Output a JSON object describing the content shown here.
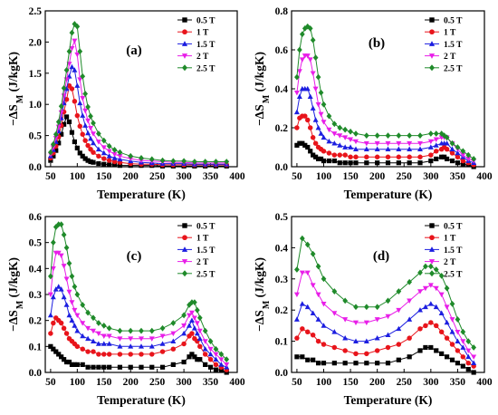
{
  "colors": {
    "0.5 T": "#000000",
    "1 T": "#e8141b",
    "1.5 T": "#1c1ee0",
    "2 T": "#e81ee8",
    "2.5 T": "#1f8a2a"
  },
  "markers": {
    "0.5 T": "square",
    "1 T": "circle",
    "1.5 T": "triangle-up",
    "2 T": "triangle-down",
    "2.5 T": "diamond"
  },
  "chart_data": [
    {
      "type": "line",
      "panel_label": "(a)",
      "xlabel": "Temperature (K)",
      "ylabel": "−ΔS_M (J/kgK)",
      "xlim": [
        40,
        400
      ],
      "ylim": [
        0,
        2.5
      ],
      "xticks": [
        50,
        100,
        150,
        200,
        250,
        300,
        350,
        400
      ],
      "yticks": [
        0.0,
        0.5,
        1.0,
        1.5,
        2.0,
        2.5
      ],
      "ytick_labels": [
        "0.0",
        "0.5",
        "1.0",
        "1.5",
        "2.0",
        "2.5"
      ],
      "legend_position": "top-right",
      "x": [
        50,
        55,
        60,
        65,
        70,
        75,
        80,
        85,
        90,
        95,
        100,
        105,
        110,
        115,
        120,
        125,
        130,
        140,
        150,
        160,
        170,
        180,
        200,
        220,
        240,
        260,
        280,
        300,
        320,
        340,
        360,
        380
      ],
      "series": [
        {
          "name": "0.5 T",
          "values": [
            0.1,
            0.17,
            0.26,
            0.38,
            0.52,
            0.68,
            0.8,
            0.72,
            0.55,
            0.4,
            0.3,
            0.22,
            0.17,
            0.13,
            0.1,
            0.08,
            0.07,
            0.05,
            0.04,
            0.03,
            0.03,
            0.02,
            0.02,
            0.02,
            0.02,
            0.01,
            0.01,
            0.01,
            0.01,
            0.01,
            0.01,
            0.01
          ]
        },
        {
          "name": "1 T",
          "values": [
            0.14,
            0.22,
            0.33,
            0.48,
            0.66,
            0.88,
            1.08,
            1.3,
            1.25,
            1.05,
            0.82,
            0.65,
            0.52,
            0.42,
            0.34,
            0.28,
            0.23,
            0.17,
            0.13,
            0.1,
            0.08,
            0.07,
            0.05,
            0.04,
            0.04,
            0.03,
            0.03,
            0.03,
            0.03,
            0.03,
            0.03,
            0.03
          ]
        },
        {
          "name": "1.5 T",
          "values": [
            0.17,
            0.27,
            0.4,
            0.57,
            0.78,
            1.02,
            1.25,
            1.45,
            1.6,
            1.55,
            1.3,
            1.02,
            0.82,
            0.66,
            0.54,
            0.45,
            0.38,
            0.28,
            0.22,
            0.17,
            0.14,
            0.12,
            0.09,
            0.07,
            0.06,
            0.05,
            0.05,
            0.05,
            0.04,
            0.04,
            0.04,
            0.04
          ]
        },
        {
          "name": "2 T",
          "values": [
            0.2,
            0.31,
            0.46,
            0.64,
            0.87,
            1.14,
            1.4,
            1.65,
            1.9,
            2.02,
            1.8,
            1.4,
            1.1,
            0.9,
            0.74,
            0.62,
            0.53,
            0.4,
            0.31,
            0.25,
            0.2,
            0.17,
            0.13,
            0.1,
            0.09,
            0.08,
            0.07,
            0.07,
            0.06,
            0.06,
            0.06,
            0.06
          ]
        },
        {
          "name": "2.5 T",
          "values": [
            0.23,
            0.36,
            0.52,
            0.72,
            0.97,
            1.26,
            1.55,
            1.85,
            2.15,
            2.29,
            2.25,
            1.85,
            1.45,
            1.17,
            0.96,
            0.81,
            0.7,
            0.53,
            0.42,
            0.33,
            0.27,
            0.23,
            0.17,
            0.14,
            0.12,
            0.1,
            0.09,
            0.09,
            0.08,
            0.08,
            0.08,
            0.08
          ]
        }
      ]
    },
    {
      "type": "line",
      "panel_label": "(b)",
      "xlabel": "Temperature (K)",
      "ylabel": "−ΔS_M (J/kgK)",
      "xlim": [
        40,
        400
      ],
      "ylim": [
        0,
        0.8
      ],
      "xticks": [
        50,
        100,
        150,
        200,
        250,
        300,
        350,
        400
      ],
      "yticks": [
        0.0,
        0.2,
        0.4,
        0.6,
        0.8
      ],
      "ytick_labels": [
        "0.0",
        "0.2",
        "0.4",
        "0.6",
        "0.8"
      ],
      "legend_position": "top-right",
      "x": [
        50,
        55,
        60,
        65,
        70,
        75,
        80,
        85,
        90,
        95,
        100,
        110,
        120,
        130,
        140,
        150,
        160,
        180,
        200,
        220,
        240,
        260,
        280,
        300,
        310,
        320,
        325,
        330,
        340,
        350,
        360,
        370,
        380
      ],
      "series": [
        {
          "name": "0.5 T",
          "values": [
            0.11,
            0.12,
            0.12,
            0.11,
            0.1,
            0.08,
            0.06,
            0.05,
            0.04,
            0.04,
            0.03,
            0.03,
            0.03,
            0.02,
            0.02,
            0.02,
            0.02,
            0.02,
            0.02,
            0.02,
            0.02,
            0.02,
            0.02,
            0.03,
            0.04,
            0.05,
            0.05,
            0.04,
            0.03,
            0.02,
            0.01,
            0.01,
            0.0
          ]
        },
        {
          "name": "1 T",
          "values": [
            0.2,
            0.25,
            0.26,
            0.26,
            0.24,
            0.2,
            0.15,
            0.12,
            0.1,
            0.09,
            0.08,
            0.07,
            0.06,
            0.06,
            0.06,
            0.05,
            0.05,
            0.05,
            0.05,
            0.05,
            0.05,
            0.05,
            0.05,
            0.06,
            0.08,
            0.09,
            0.1,
            0.09,
            0.07,
            0.05,
            0.03,
            0.02,
            0.01
          ]
        },
        {
          "name": "1.5 T",
          "values": [
            0.28,
            0.36,
            0.4,
            0.4,
            0.4,
            0.36,
            0.3,
            0.24,
            0.2,
            0.17,
            0.15,
            0.13,
            0.12,
            0.11,
            0.1,
            0.1,
            0.09,
            0.09,
            0.09,
            0.09,
            0.09,
            0.09,
            0.09,
            0.1,
            0.11,
            0.12,
            0.12,
            0.12,
            0.09,
            0.07,
            0.05,
            0.03,
            0.02
          ]
        },
        {
          "name": "2 T",
          "values": [
            0.38,
            0.49,
            0.55,
            0.57,
            0.57,
            0.55,
            0.48,
            0.4,
            0.32,
            0.27,
            0.23,
            0.19,
            0.17,
            0.16,
            0.15,
            0.14,
            0.13,
            0.12,
            0.12,
            0.12,
            0.12,
            0.12,
            0.12,
            0.13,
            0.14,
            0.15,
            0.15,
            0.15,
            0.12,
            0.09,
            0.06,
            0.04,
            0.03
          ]
        },
        {
          "name": "2.5 T",
          "values": [
            0.46,
            0.6,
            0.68,
            0.71,
            0.72,
            0.71,
            0.65,
            0.56,
            0.46,
            0.38,
            0.32,
            0.26,
            0.22,
            0.2,
            0.19,
            0.18,
            0.17,
            0.16,
            0.16,
            0.16,
            0.16,
            0.16,
            0.16,
            0.17,
            0.17,
            0.17,
            0.16,
            0.15,
            0.12,
            0.1,
            0.08,
            0.06,
            0.04
          ]
        }
      ]
    },
    {
      "type": "line",
      "panel_label": "(c)",
      "xlabel": "Temperature (K)",
      "ylabel": "−ΔS_M (J/kgK)",
      "xlim": [
        40,
        400
      ],
      "ylim": [
        0,
        0.6
      ],
      "xticks": [
        50,
        100,
        150,
        200,
        250,
        300,
        350,
        400
      ],
      "yticks": [
        0.0,
        0.1,
        0.2,
        0.3,
        0.4,
        0.5,
        0.6
      ],
      "ytick_labels": [
        "0.0",
        "0.1",
        "0.2",
        "0.3",
        "0.4",
        "0.5",
        "0.6"
      ],
      "legend_position": "top-right",
      "x": [
        50,
        55,
        60,
        65,
        70,
        75,
        80,
        85,
        90,
        95,
        100,
        110,
        120,
        130,
        140,
        150,
        160,
        180,
        200,
        220,
        240,
        260,
        280,
        300,
        310,
        315,
        320,
        325,
        330,
        340,
        350,
        360,
        370,
        380
      ],
      "series": [
        {
          "name": "0.5 T",
          "values": [
            0.1,
            0.09,
            0.08,
            0.07,
            0.06,
            0.05,
            0.04,
            0.04,
            0.03,
            0.03,
            0.03,
            0.03,
            0.02,
            0.02,
            0.02,
            0.02,
            0.02,
            0.02,
            0.02,
            0.02,
            0.02,
            0.02,
            0.03,
            0.04,
            0.06,
            0.07,
            0.06,
            0.05,
            0.05,
            0.03,
            0.02,
            0.01,
            0.01,
            0.0
          ]
        },
        {
          "name": "1 T",
          "values": [
            0.15,
            0.19,
            0.21,
            0.2,
            0.19,
            0.17,
            0.15,
            0.13,
            0.12,
            0.11,
            0.1,
            0.09,
            0.08,
            0.08,
            0.07,
            0.07,
            0.07,
            0.07,
            0.07,
            0.07,
            0.07,
            0.08,
            0.09,
            0.11,
            0.14,
            0.15,
            0.13,
            0.12,
            0.1,
            0.07,
            0.05,
            0.03,
            0.02,
            0.01
          ]
        },
        {
          "name": "1.5 T",
          "values": [
            0.22,
            0.29,
            0.32,
            0.33,
            0.32,
            0.29,
            0.26,
            0.22,
            0.2,
            0.18,
            0.16,
            0.14,
            0.13,
            0.12,
            0.11,
            0.11,
            0.11,
            0.1,
            0.1,
            0.1,
            0.1,
            0.11,
            0.12,
            0.15,
            0.18,
            0.2,
            0.17,
            0.15,
            0.13,
            0.09,
            0.07,
            0.05,
            0.03,
            0.02
          ]
        },
        {
          "name": "2 T",
          "values": [
            0.3,
            0.4,
            0.46,
            0.46,
            0.45,
            0.41,
            0.36,
            0.31,
            0.27,
            0.24,
            0.22,
            0.19,
            0.17,
            0.16,
            0.15,
            0.14,
            0.14,
            0.13,
            0.13,
            0.13,
            0.13,
            0.14,
            0.15,
            0.18,
            0.22,
            0.23,
            0.21,
            0.19,
            0.16,
            0.12,
            0.09,
            0.07,
            0.05,
            0.03
          ]
        },
        {
          "name": "2.5 T",
          "values": [
            0.37,
            0.5,
            0.56,
            0.57,
            0.57,
            0.53,
            0.48,
            0.42,
            0.37,
            0.33,
            0.3,
            0.26,
            0.23,
            0.21,
            0.19,
            0.18,
            0.17,
            0.16,
            0.16,
            0.16,
            0.16,
            0.17,
            0.19,
            0.22,
            0.26,
            0.27,
            0.27,
            0.24,
            0.21,
            0.16,
            0.12,
            0.09,
            0.07,
            0.05
          ]
        }
      ]
    },
    {
      "type": "line",
      "panel_label": "(d)",
      "xlabel": "Temperature (K)",
      "ylabel": "−ΔS_M (J/kgK)",
      "xlim": [
        40,
        400
      ],
      "ylim": [
        0,
        0.5
      ],
      "xticks": [
        50,
        100,
        150,
        200,
        250,
        300,
        350,
        400
      ],
      "yticks": [
        0.0,
        0.1,
        0.2,
        0.3,
        0.4,
        0.5
      ],
      "ytick_labels": [
        "0.0",
        "0.1",
        "0.2",
        "0.3",
        "0.4",
        "0.5"
      ],
      "legend_position": "top-right",
      "x": [
        50,
        60,
        70,
        80,
        90,
        100,
        120,
        140,
        160,
        180,
        200,
        220,
        240,
        260,
        280,
        290,
        300,
        310,
        320,
        330,
        340,
        350,
        360,
        370,
        380
      ],
      "series": [
        {
          "name": "0.5 T",
          "values": [
            0.05,
            0.05,
            0.04,
            0.04,
            0.03,
            0.03,
            0.03,
            0.03,
            0.03,
            0.03,
            0.03,
            0.03,
            0.04,
            0.05,
            0.07,
            0.08,
            0.08,
            0.07,
            0.06,
            0.05,
            0.04,
            0.03,
            0.02,
            0.01,
            0.0
          ]
        },
        {
          "name": "1 T",
          "values": [
            0.11,
            0.14,
            0.13,
            0.12,
            0.1,
            0.09,
            0.08,
            0.07,
            0.06,
            0.06,
            0.07,
            0.08,
            0.09,
            0.11,
            0.14,
            0.15,
            0.16,
            0.15,
            0.13,
            0.11,
            0.09,
            0.07,
            0.05,
            0.03,
            0.02
          ]
        },
        {
          "name": "1.5 T",
          "values": [
            0.17,
            0.22,
            0.21,
            0.19,
            0.17,
            0.15,
            0.13,
            0.11,
            0.1,
            0.1,
            0.11,
            0.12,
            0.14,
            0.17,
            0.2,
            0.21,
            0.22,
            0.21,
            0.19,
            0.16,
            0.13,
            0.1,
            0.08,
            0.05,
            0.03
          ]
        },
        {
          "name": "2 T",
          "values": [
            0.25,
            0.32,
            0.32,
            0.28,
            0.25,
            0.22,
            0.19,
            0.17,
            0.16,
            0.16,
            0.17,
            0.18,
            0.2,
            0.23,
            0.26,
            0.27,
            0.28,
            0.27,
            0.25,
            0.21,
            0.17,
            0.13,
            0.1,
            0.07,
            0.05
          ]
        },
        {
          "name": "2.5 T",
          "values": [
            0.33,
            0.43,
            0.41,
            0.38,
            0.34,
            0.3,
            0.26,
            0.23,
            0.21,
            0.21,
            0.21,
            0.23,
            0.26,
            0.29,
            0.32,
            0.34,
            0.34,
            0.33,
            0.31,
            0.27,
            0.22,
            0.17,
            0.13,
            0.1,
            0.08
          ]
        }
      ]
    }
  ]
}
